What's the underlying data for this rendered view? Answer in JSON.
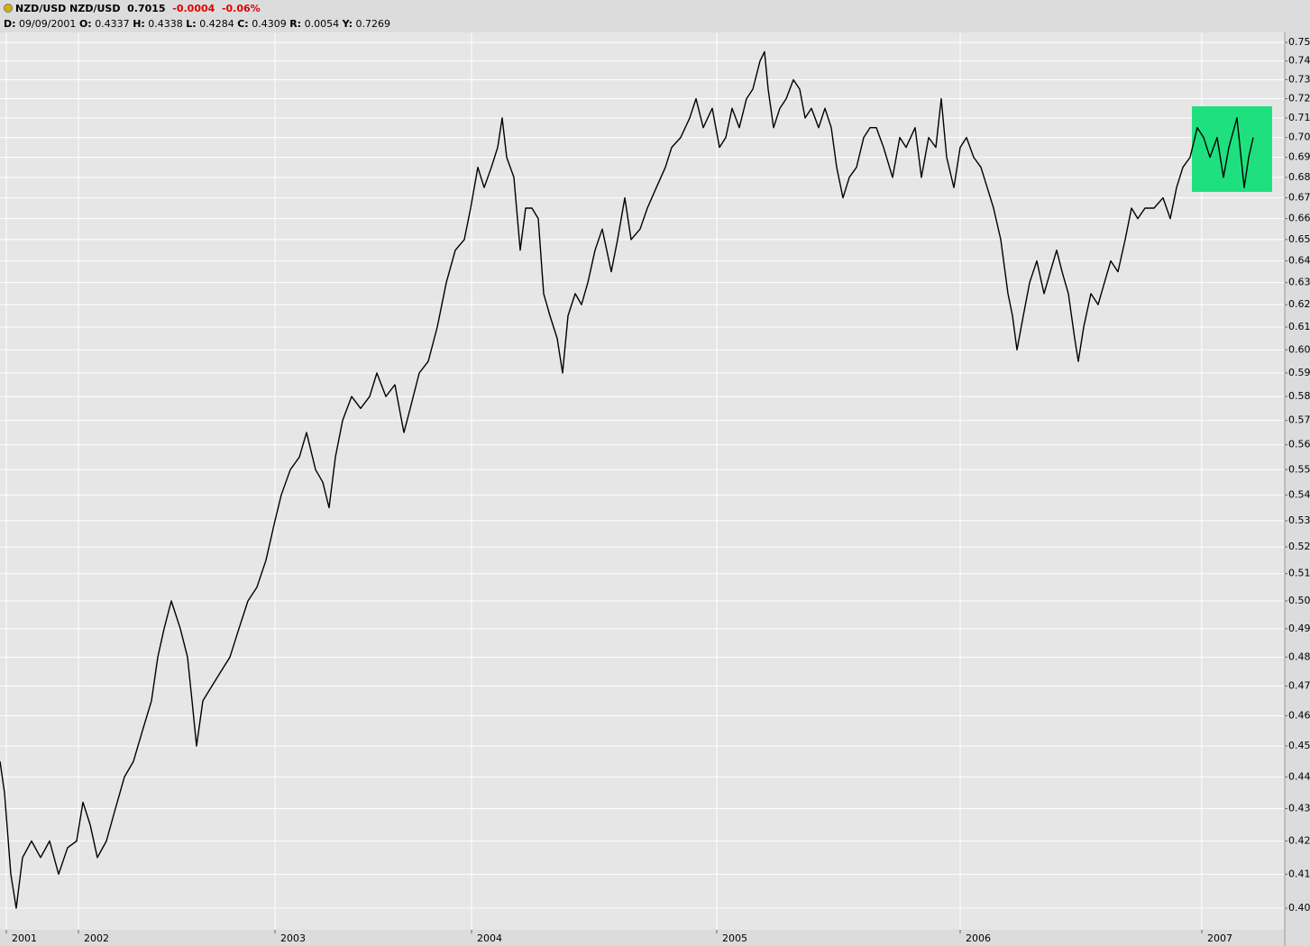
{
  "chart_data": {
    "type": "line",
    "title": "NZD/USD NZD/USD",
    "last_price": "0.7015",
    "change": "-0.0004",
    "change_pct": "-0.06%",
    "info": [
      {
        "label": "D:",
        "value": "09/09/2001"
      },
      {
        "label": "O:",
        "value": "0.4337"
      },
      {
        "label": "H:",
        "value": "0.4338"
      },
      {
        "label": "L:",
        "value": "0.4284"
      },
      {
        "label": "C:",
        "value": "0.4309"
      },
      {
        "label": "R:",
        "value": "0.0054"
      },
      {
        "label": "Y:",
        "value": "0.7269"
      }
    ],
    "log_scale": true,
    "grid": true,
    "xlim": [
      0,
      1425
    ],
    "xticks": [
      {
        "value": 7,
        "label": "2001"
      },
      {
        "value": 87,
        "label": "2002"
      },
      {
        "value": 305,
        "label": "2003"
      },
      {
        "value": 523,
        "label": "2004"
      },
      {
        "value": 795,
        "label": "2005"
      },
      {
        "value": 1065,
        "label": "2006"
      },
      {
        "value": 1333,
        "label": "2007"
      }
    ],
    "ylim": [
      0.3943,
      0.755
    ],
    "yticks": [
      {
        "value": 0.4,
        "label": "0.40"
      },
      0.41,
      0.42,
      0.43,
      0.44,
      0.45,
      0.46,
      0.47,
      0.48,
      0.49,
      {
        "value": 0.5,
        "label": "0.50"
      },
      0.51,
      0.52,
      0.53,
      0.54,
      0.55,
      0.56,
      0.57,
      0.58,
      0.59,
      {
        "value": 0.6,
        "label": "0.60"
      },
      0.61,
      0.62,
      0.63,
      0.64,
      0.65,
      0.66,
      0.67,
      0.68,
      0.69,
      {
        "value": 0.7,
        "label": "0.70"
      },
      0.71,
      0.72,
      0.73,
      0.74,
      0.75
    ],
    "series": [
      {
        "name": "NZD/USD",
        "color": "#000000",
        "x": [
          0,
          5,
          12,
          18,
          25,
          35,
          45,
          55,
          65,
          75,
          85,
          92,
          100,
          108,
          118,
          128,
          138,
          148,
          158,
          168,
          175,
          182,
          190,
          200,
          208,
          213,
          218,
          225,
          235,
          245,
          255,
          265,
          275,
          285,
          295,
          305,
          312,
          322,
          332,
          340,
          350,
          358,
          365,
          372,
          380,
          390,
          400,
          410,
          418,
          428,
          438,
          448,
          455,
          465,
          475,
          485,
          495,
          505,
          515,
          522,
          530,
          537,
          545,
          552,
          557,
          562,
          570,
          577,
          583,
          590,
          597,
          603,
          610,
          618,
          624,
          630,
          638,
          645,
          652,
          660,
          668,
          678,
          685,
          693,
          700,
          710,
          718,
          728,
          738,
          745,
          755,
          765,
          772,
          780,
          790,
          798,
          805,
          812,
          820,
          828,
          835,
          843,
          848,
          852,
          858,
          865,
          872,
          880,
          887,
          893,
          900,
          908,
          915,
          922,
          928,
          935,
          942,
          950,
          958,
          965,
          972,
          980,
          990,
          998,
          1005,
          1015,
          1022,
          1030,
          1038,
          1044,
          1050,
          1058,
          1065,
          1072,
          1080,
          1088,
          1095,
          1102,
          1110,
          1118,
          1123,
          1128,
          1135,
          1142,
          1150,
          1158,
          1165,
          1172,
          1178,
          1185,
          1192,
          1196,
          1202,
          1210,
          1218,
          1225,
          1232,
          1240,
          1248,
          1255,
          1262,
          1270,
          1280,
          1290,
          1298,
          1305,
          1312,
          1320,
          1328,
          1335,
          1342,
          1350,
          1357,
          1363,
          1372,
          1380,
          1385,
          1390
        ],
        "values": [
          0.445,
          0.435,
          0.41,
          0.4,
          0.415,
          0.42,
          0.415,
          0.42,
          0.41,
          0.418,
          0.42,
          0.432,
          0.425,
          0.415,
          0.42,
          0.43,
          0.44,
          0.445,
          0.455,
          0.465,
          0.48,
          0.49,
          0.5,
          0.49,
          0.48,
          0.465,
          0.45,
          0.465,
          0.47,
          0.475,
          0.48,
          0.49,
          0.5,
          0.505,
          0.515,
          0.53,
          0.54,
          0.55,
          0.555,
          0.565,
          0.55,
          0.545,
          0.535,
          0.555,
          0.57,
          0.58,
          0.575,
          0.58,
          0.59,
          0.58,
          0.585,
          0.565,
          0.575,
          0.59,
          0.595,
          0.61,
          0.63,
          0.645,
          0.65,
          0.665,
          0.685,
          0.675,
          0.685,
          0.695,
          0.71,
          0.69,
          0.68,
          0.645,
          0.665,
          0.665,
          0.66,
          0.625,
          0.615,
          0.605,
          0.59,
          0.615,
          0.625,
          0.62,
          0.63,
          0.645,
          0.655,
          0.635,
          0.65,
          0.67,
          0.65,
          0.655,
          0.665,
          0.675,
          0.685,
          0.695,
          0.7,
          0.71,
          0.72,
          0.705,
          0.715,
          0.695,
          0.7,
          0.715,
          0.705,
          0.72,
          0.725,
          0.74,
          0.745,
          0.725,
          0.705,
          0.715,
          0.72,
          0.73,
          0.725,
          0.71,
          0.715,
          0.705,
          0.715,
          0.705,
          0.685,
          0.67,
          0.68,
          0.685,
          0.7,
          0.705,
          0.705,
          0.695,
          0.68,
          0.7,
          0.695,
          0.705,
          0.68,
          0.7,
          0.695,
          0.72,
          0.69,
          0.675,
          0.695,
          0.7,
          0.69,
          0.685,
          0.675,
          0.665,
          0.65,
          0.625,
          0.615,
          0.6,
          0.615,
          0.63,
          0.64,
          0.625,
          0.635,
          0.645,
          0.635,
          0.625,
          0.605,
          0.595,
          0.61,
          0.625,
          0.62,
          0.63,
          0.64,
          0.635,
          0.65,
          0.665,
          0.66,
          0.665,
          0.665,
          0.67,
          0.66,
          0.675,
          0.685,
          0.69,
          0.705,
          0.7,
          0.69,
          0.7,
          0.68,
          0.695,
          0.71,
          0.675,
          0.69,
          0.7
        ]
      }
    ]
  }
}
